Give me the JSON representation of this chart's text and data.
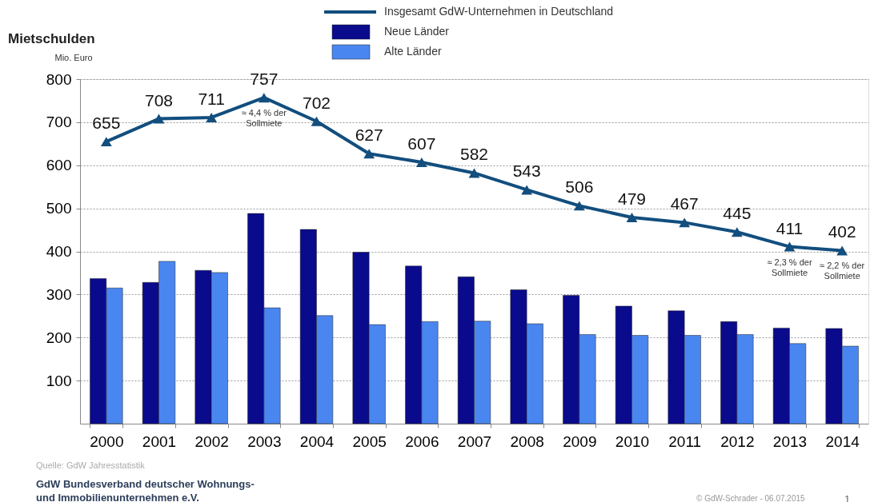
{
  "chart_data": {
    "type": "bar",
    "title": "Mietschulden",
    "ylabel": "Mio. Euro",
    "categories": [
      "2000",
      "2001",
      "2002",
      "2003",
      "2004",
      "2005",
      "2006",
      "2007",
      "2008",
      "2009",
      "2010",
      "2011",
      "2012",
      "2013",
      "2014"
    ],
    "series": [
      {
        "name": "Insgesamt GdW-Unternehmen in Deutschland",
        "type": "line",
        "color": "#124e7e",
        "marker": "triangle",
        "values": [
          655,
          708,
          711,
          757,
          702,
          627,
          607,
          582,
          543,
          506,
          479,
          467,
          445,
          411,
          402
        ],
        "value_labels": [
          "655",
          "708",
          "711",
          "757",
          "702",
          "627",
          "607",
          "582",
          "543",
          "506",
          "479",
          "467",
          "445",
          "411",
          "402"
        ]
      },
      {
        "name": "Neue Länder",
        "color": "#0a0a8c",
        "values": [
          337,
          328,
          356,
          488,
          451,
          398,
          366,
          341,
          311,
          298,
          273,
          262,
          237,
          222,
          221
        ]
      },
      {
        "name": "Alte Länder",
        "color": "#4a86f0",
        "values": [
          315,
          377,
          351,
          269,
          251,
          230,
          237,
          238,
          232,
          207,
          205,
          205,
          207,
          186,
          180
        ]
      }
    ],
    "ylim": [
      0,
      800
    ],
    "yticks": [
      100,
      200,
      300,
      400,
      500,
      600,
      700,
      800
    ],
    "grid": "y",
    "legend": "top",
    "annotations": [
      {
        "text": "≈ 4,4 % der\nSollmiete",
        "x": "2003",
        "y": 757
      },
      {
        "text": "≈ 2,3 % der\nSollmiete",
        "x": "2013",
        "y": 411
      },
      {
        "text": "≈ 2,2 % der\nSollmiete",
        "x": "2014",
        "y": 402
      },
      "Quelle: GdW Jahresstatistik",
      "GdW Bundesverband deutscher Wohnungs-\nund Immobilienunternehmen e.V.",
      "© GdW-Schrader - 06.07.2015",
      "1"
    ]
  }
}
